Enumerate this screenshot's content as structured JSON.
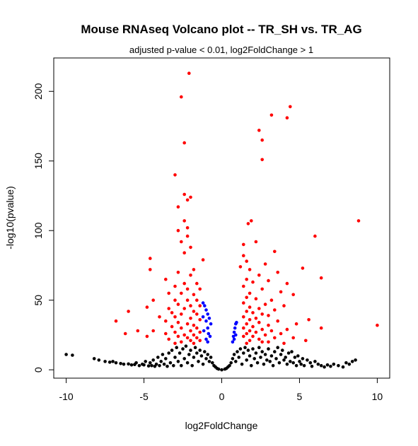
{
  "chart_data": {
    "type": "scatter",
    "title": "Mouse RNAseq Volcano plot -- TR_SH vs. TR_AG",
    "subtitle": "adjusted p-value < 0.01, log2FoldChange > 1",
    "xlabel": "log2FoldChange",
    "ylabel": "-log10(pvalue)",
    "xlim": [
      -10.8,
      10.8
    ],
    "ylim": [
      -6,
      224
    ],
    "x_ticks": [
      -10,
      -5,
      0,
      5,
      10
    ],
    "y_ticks": [
      0,
      50,
      100,
      150,
      200
    ],
    "grid": false,
    "legend": "none",
    "colors": {
      "not_significant": "#000000",
      "padj_only": "#0000ff",
      "padj_and_fc": "#ff0000",
      "axis": "#000000"
    },
    "series": [
      {
        "color": "#000000",
        "points": [
          [
            -10.9,
            13
          ],
          [
            -10,
            11
          ],
          [
            -9.6,
            10.5
          ],
          [
            -8.2,
            8
          ],
          [
            -7.9,
            7
          ],
          [
            -7.5,
            6
          ],
          [
            -7.2,
            5.5
          ],
          [
            -7,
            6
          ],
          [
            -6.8,
            5
          ],
          [
            -6.5,
            4.5
          ],
          [
            -6.3,
            4
          ],
          [
            -6,
            4.2
          ],
          [
            -5.8,
            3.5
          ],
          [
            -5.6,
            3.8
          ],
          [
            -5.5,
            5
          ],
          [
            -5.3,
            3
          ],
          [
            -5.1,
            4
          ],
          [
            -5,
            3.5
          ],
          [
            -4.9,
            6
          ],
          [
            -4.7,
            2.8
          ],
          [
            -4.6,
            5
          ],
          [
            -4.5,
            3
          ],
          [
            -4.4,
            7
          ],
          [
            -4.3,
            2.5
          ],
          [
            -4.2,
            4
          ],
          [
            -4.1,
            9
          ],
          [
            -4,
            3
          ],
          [
            -3.9,
            6
          ],
          [
            -3.8,
            11
          ],
          [
            -3.7,
            4
          ],
          [
            -3.6,
            8
          ],
          [
            -3.5,
            2.5
          ],
          [
            -3.4,
            12
          ],
          [
            -3.3,
            5
          ],
          [
            -3.2,
            14
          ],
          [
            -3.1,
            3
          ],
          [
            -3,
            9
          ],
          [
            -2.9,
            16
          ],
          [
            -2.8,
            6
          ],
          [
            -2.7,
            12
          ],
          [
            -2.6,
            3
          ],
          [
            -2.5,
            15
          ],
          [
            -2.4,
            8
          ],
          [
            -2.3,
            17
          ],
          [
            -2.2,
            5
          ],
          [
            -2.1,
            11
          ],
          [
            -2,
            14
          ],
          [
            -1.9,
            3
          ],
          [
            -1.8,
            9
          ],
          [
            -1.7,
            16
          ],
          [
            -1.6,
            12
          ],
          [
            -1.5,
            6
          ],
          [
            -1.4,
            14
          ],
          [
            -1.3,
            10
          ],
          [
            -1.2,
            4
          ],
          [
            -1.1,
            13
          ],
          [
            -1,
            8
          ],
          [
            -0.9,
            11
          ],
          [
            -0.8,
            6
          ],
          [
            -0.7,
            9
          ],
          [
            -0.6,
            5
          ],
          [
            -0.5,
            3
          ],
          [
            -0.4,
            2
          ],
          [
            -0.3,
            1
          ],
          [
            -0.2,
            0.5
          ],
          [
            0,
            0
          ],
          [
            0.2,
            0.5
          ],
          [
            0.3,
            1
          ],
          [
            0.4,
            2
          ],
          [
            0.5,
            3
          ],
          [
            0.6,
            5
          ],
          [
            0.7,
            8
          ],
          [
            0.8,
            11
          ],
          [
            0.9,
            6
          ],
          [
            1,
            13
          ],
          [
            1.1,
            9
          ],
          [
            1.2,
            15
          ],
          [
            1.3,
            4
          ],
          [
            1.4,
            12
          ],
          [
            1.5,
            16
          ],
          [
            1.6,
            7
          ],
          [
            1.7,
            14
          ],
          [
            1.8,
            10
          ],
          [
            1.9,
            3
          ],
          [
            2,
            15
          ],
          [
            2.1,
            8
          ],
          [
            2.2,
            12
          ],
          [
            2.3,
            5
          ],
          [
            2.4,
            16
          ],
          [
            2.5,
            9
          ],
          [
            2.6,
            13
          ],
          [
            2.7,
            4
          ],
          [
            2.8,
            11
          ],
          [
            2.9,
            7
          ],
          [
            3,
            15
          ],
          [
            3.1,
            6
          ],
          [
            3.2,
            10
          ],
          [
            3.3,
            3
          ],
          [
            3.4,
            13
          ],
          [
            3.5,
            8
          ],
          [
            3.6,
            16
          ],
          [
            3.7,
            5
          ],
          [
            3.8,
            11
          ],
          [
            3.9,
            14
          ],
          [
            4,
            7
          ],
          [
            4.1,
            9
          ],
          [
            4.2,
            4
          ],
          [
            4.3,
            12
          ],
          [
            4.4,
            6
          ],
          [
            4.5,
            13
          ],
          [
            4.6,
            5
          ],
          [
            4.7,
            9
          ],
          [
            4.8,
            3
          ],
          [
            4.9,
            10
          ],
          [
            5,
            6
          ],
          [
            5.1,
            4
          ],
          [
            5.2,
            8
          ],
          [
            5.3,
            3
          ],
          [
            5.5,
            7
          ],
          [
            5.7,
            5
          ],
          [
            5.8,
            2.5
          ],
          [
            6,
            6
          ],
          [
            6.2,
            4
          ],
          [
            6.4,
            3
          ],
          [
            6.6,
            2
          ],
          [
            6.8,
            3.5
          ],
          [
            7,
            2.5
          ],
          [
            7.2,
            4
          ],
          [
            7.5,
            3
          ],
          [
            7.8,
            2
          ],
          [
            8,
            5
          ],
          [
            8.2,
            4
          ],
          [
            8.4,
            6
          ],
          [
            8.6,
            7
          ]
        ]
      },
      {
        "color": "#0000ff",
        "points": [
          [
            -1.2,
            48
          ],
          [
            -1.1,
            46
          ],
          [
            -1,
            43
          ],
          [
            -0.9,
            40
          ],
          [
            -0.8,
            37
          ],
          [
            -0.7,
            33
          ],
          [
            -1.2,
            38
          ],
          [
            -1.0,
            35
          ],
          [
            -0.9,
            30
          ],
          [
            -1.15,
            28
          ],
          [
            -0.85,
            26
          ],
          [
            -0.75,
            24
          ],
          [
            -1.0,
            22
          ],
          [
            -0.9,
            20
          ],
          [
            0.7,
            20
          ],
          [
            0.75,
            24
          ],
          [
            0.8,
            27
          ],
          [
            0.85,
            30
          ],
          [
            0.9,
            33
          ],
          [
            0.95,
            34
          ],
          [
            0.8,
            22
          ],
          [
            0.9,
            25
          ]
        ]
      },
      {
        "color": "#ff0000",
        "points": [
          [
            -2.1,
            213
          ],
          [
            -2.6,
            196
          ],
          [
            -2.4,
            163
          ],
          [
            -3.0,
            140
          ],
          [
            -2.4,
            126
          ],
          [
            -2.0,
            124
          ],
          [
            -2.2,
            122
          ],
          [
            -2.8,
            117
          ],
          [
            -2.4,
            107
          ],
          [
            -2.2,
            102
          ],
          [
            -2.8,
            100
          ],
          [
            -2.2,
            96
          ],
          [
            -2.6,
            92
          ],
          [
            -2.0,
            88
          ],
          [
            -2.4,
            84
          ],
          [
            -4.6,
            80
          ],
          [
            -1.2,
            79
          ],
          [
            -4.6,
            72
          ],
          [
            -1.8,
            72
          ],
          [
            -2.8,
            70
          ],
          [
            -2.0,
            68
          ],
          [
            -3.6,
            65
          ],
          [
            -2.4,
            62
          ],
          [
            -1.6,
            62
          ],
          [
            -3.0,
            60
          ],
          [
            -2.2,
            58
          ],
          [
            -1.4,
            58
          ],
          [
            -3.4,
            55
          ],
          [
            -2.6,
            55
          ],
          [
            -1.8,
            54
          ],
          [
            -4.4,
            50
          ],
          [
            -3.0,
            50
          ],
          [
            -2.2,
            50
          ],
          [
            -1.6,
            50
          ],
          [
            -2.8,
            47
          ],
          [
            -2.0,
            46
          ],
          [
            -1.4,
            46
          ],
          [
            -4.8,
            45
          ],
          [
            -3.4,
            44
          ],
          [
            -2.4,
            44
          ],
          [
            -1.8,
            42
          ],
          [
            -6.0,
            42
          ],
          [
            -3.2,
            41
          ],
          [
            -2.6,
            40
          ],
          [
            -1.6,
            40
          ],
          [
            -4.0,
            38
          ],
          [
            -3.0,
            38
          ],
          [
            -2.0,
            37
          ],
          [
            -1.4,
            36
          ],
          [
            -6.8,
            35
          ],
          [
            -3.6,
            35
          ],
          [
            -2.8,
            34
          ],
          [
            -2.2,
            33
          ],
          [
            -1.8,
            32
          ],
          [
            -3.2,
            31
          ],
          [
            -2.6,
            30
          ],
          [
            -1.6,
            30
          ],
          [
            -5.4,
            28
          ],
          [
            -4.4,
            28
          ],
          [
            -2.0,
            28
          ],
          [
            -3.0,
            27
          ],
          [
            -1.4,
            27
          ],
          [
            -6.2,
            26
          ],
          [
            -3.6,
            26
          ],
          [
            -2.4,
            25
          ],
          [
            -1.8,
            25
          ],
          [
            -4.8,
            24
          ],
          [
            -2.8,
            24
          ],
          [
            -2.2,
            23
          ],
          [
            -1.6,
            23
          ],
          [
            -3.4,
            22
          ],
          [
            -2.0,
            21
          ],
          [
            -1.4,
            21
          ],
          [
            -2.6,
            20
          ],
          [
            -3.0,
            19
          ],
          [
            -1.8,
            19
          ],
          [
            4.4,
            189
          ],
          [
            3.2,
            183
          ],
          [
            4.2,
            181
          ],
          [
            2.4,
            172
          ],
          [
            2.6,
            165
          ],
          [
            2.6,
            151
          ],
          [
            8.8,
            107
          ],
          [
            1.9,
            107
          ],
          [
            1.7,
            105
          ],
          [
            6.0,
            96
          ],
          [
            2.2,
            92
          ],
          [
            1.4,
            90
          ],
          [
            3.4,
            85
          ],
          [
            1.4,
            82
          ],
          [
            1.6,
            78
          ],
          [
            2.8,
            76
          ],
          [
            1.2,
            74
          ],
          [
            5.2,
            73
          ],
          [
            1.8,
            72
          ],
          [
            3.6,
            70
          ],
          [
            2.4,
            68
          ],
          [
            6.4,
            66
          ],
          [
            1.6,
            65
          ],
          [
            3.0,
            64
          ],
          [
            2.0,
            63
          ],
          [
            4.2,
            62
          ],
          [
            1.4,
            60
          ],
          [
            2.6,
            58
          ],
          [
            3.8,
            56
          ],
          [
            1.8,
            55
          ],
          [
            4.6,
            54
          ],
          [
            1.6,
            52
          ],
          [
            2.2,
            51
          ],
          [
            3.2,
            50
          ],
          [
            1.4,
            48
          ],
          [
            2.8,
            47
          ],
          [
            4.0,
            46
          ],
          [
            1.8,
            45
          ],
          [
            2.4,
            44
          ],
          [
            3.4,
            43
          ],
          [
            1.6,
            42
          ],
          [
            2.0,
            41
          ],
          [
            2.6,
            40
          ],
          [
            3.0,
            39
          ],
          [
            1.4,
            38
          ],
          [
            2.2,
            37
          ],
          [
            1.8,
            36
          ],
          [
            5.6,
            36
          ],
          [
            3.6,
            35
          ],
          [
            2.4,
            34
          ],
          [
            4.8,
            33
          ],
          [
            1.6,
            33
          ],
          [
            10.0,
            32
          ],
          [
            3.0,
            32
          ],
          [
            2.0,
            31
          ],
          [
            1.4,
            30
          ],
          [
            6.4,
            30
          ],
          [
            2.6,
            29
          ],
          [
            4.2,
            29
          ],
          [
            1.8,
            28
          ],
          [
            3.2,
            28
          ],
          [
            2.2,
            27
          ],
          [
            1.6,
            26
          ],
          [
            3.8,
            26
          ],
          [
            2.8,
            25
          ],
          [
            2.0,
            24
          ],
          [
            1.4,
            24
          ],
          [
            4.6,
            23
          ],
          [
            3.4,
            23
          ],
          [
            2.4,
            22
          ],
          [
            5.4,
            21
          ],
          [
            1.8,
            21
          ],
          [
            3.0,
            20
          ],
          [
            2.6,
            20
          ],
          [
            1.6,
            19
          ],
          [
            4.0,
            19
          ]
        ]
      }
    ]
  }
}
